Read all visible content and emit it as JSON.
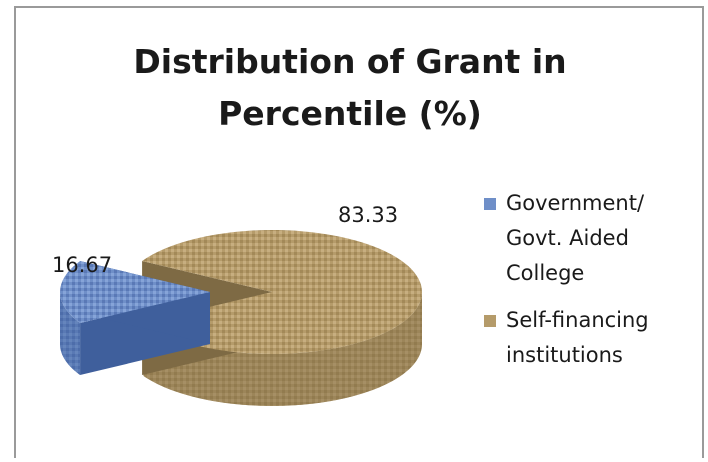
{
  "chart_data": {
    "type": "pie",
    "title_lines": [
      "Distribution of Grant in",
      "Percentile (%)"
    ],
    "categories": [
      "Government/\nGovt. Aided\nCollege",
      "Self-financing\ninstitutions"
    ],
    "values": [
      16.67,
      83.33
    ],
    "data_labels": [
      "16.67",
      "83.33"
    ],
    "colors": [
      "#6f8fc8",
      "#b59b6a"
    ],
    "colors_side": [
      "#3f5f9c",
      "#7e6a44"
    ],
    "legend_position": "right",
    "style": "3d exploded"
  }
}
